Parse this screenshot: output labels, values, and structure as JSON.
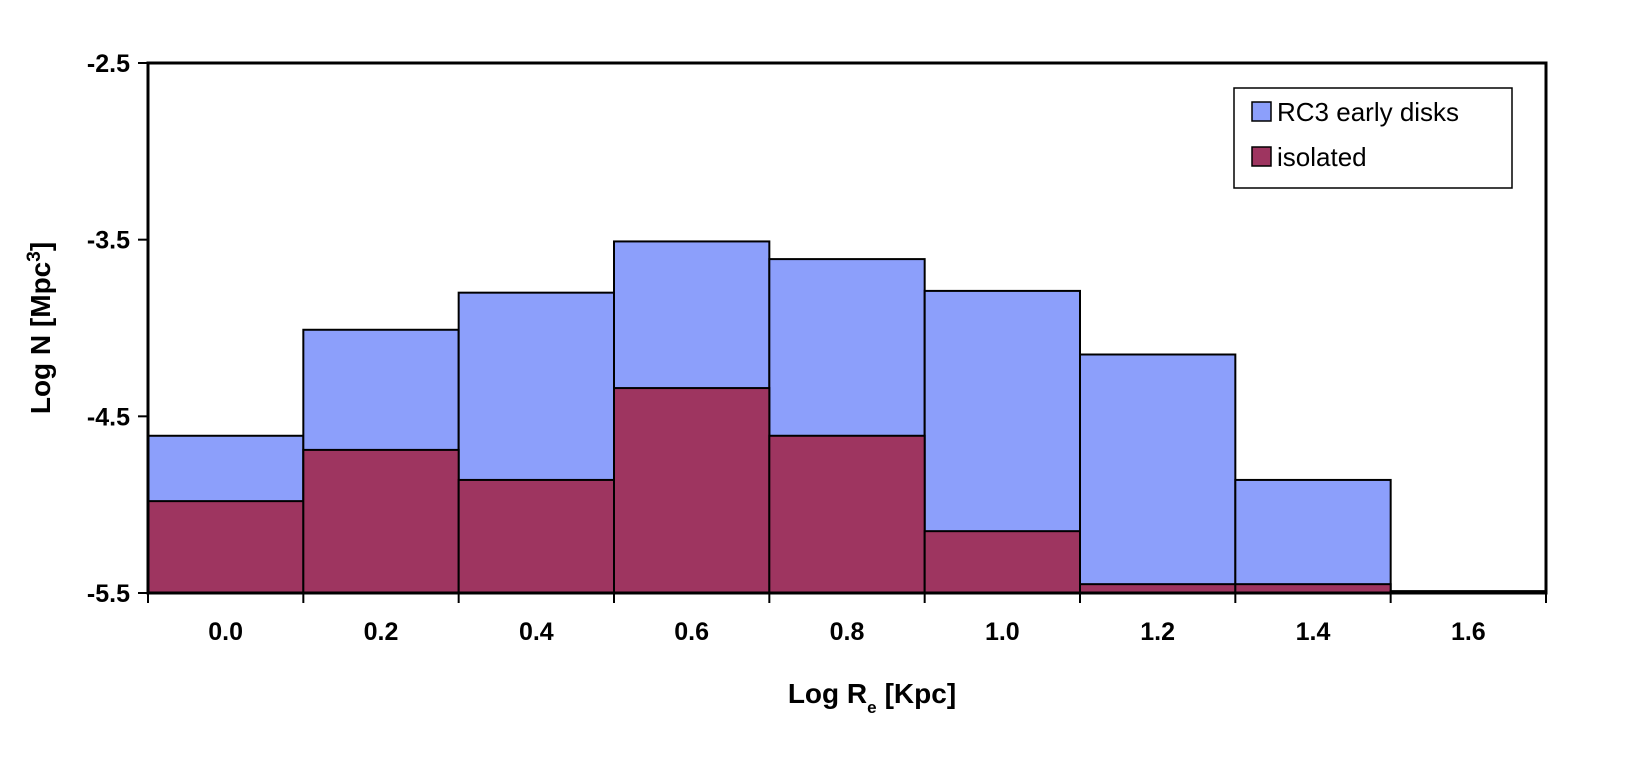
{
  "chart_data": {
    "type": "bar",
    "categories": [
      "0.0",
      "0.2",
      "0.4",
      "0.6",
      "0.8",
      "1.0",
      "1.2",
      "1.4",
      "1.6"
    ],
    "series": [
      {
        "name": "RC3 early disks",
        "color": "#8c9ffb",
        "values": [
          -4.61,
          -4.01,
          -3.8,
          -3.51,
          -3.61,
          -3.79,
          -4.15,
          -4.86,
          -5.49
        ]
      },
      {
        "name": "isolated",
        "color": "#9e3560",
        "values": [
          -4.98,
          -4.69,
          -4.86,
          -4.34,
          -4.61,
          -5.15,
          -5.45,
          -5.45,
          -5.49
        ]
      }
    ],
    "xlabel": "Log R",
    "xlabel_subscript": "e",
    "xlabel_unit": "[Kpc]",
    "ylabel": "Log N [Mpc",
    "ylabel_superscript": "3",
    "ylabel_close": "]",
    "ylim": [
      -5.5,
      -2.5
    ],
    "yticks": [
      "-2.5",
      "-3.5",
      "-4.5",
      "-5.5"
    ],
    "grid": false,
    "legend": "top-right"
  }
}
